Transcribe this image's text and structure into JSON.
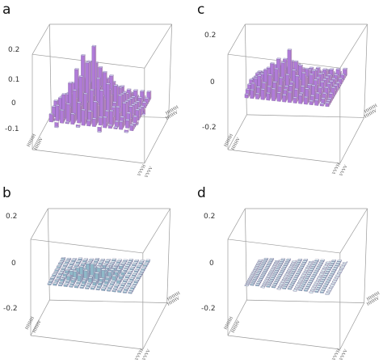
{
  "panels": [
    {
      "letter": "a",
      "z_ticks": [
        "0.2",
        "0.1",
        "0",
        "-0.1"
      ],
      "left_axis_ticks": [
        "HHHH",
        "HHHV"
      ],
      "right_axis_ticks": [
        "HHHV",
        "HHHH"
      ],
      "bottom_axis_ticks": [
        "VVVH",
        "VVVV"
      ]
    },
    {
      "letter": "c",
      "z_ticks": [
        "0.2",
        "0",
        "-0.2"
      ],
      "left_axis_ticks": [
        "HHHH",
        "HHHV"
      ],
      "right_axis_ticks": [
        "HHHV",
        "HHHH"
      ],
      "bottom_axis_ticks": [
        "VVVH",
        "VVVV"
      ]
    },
    {
      "letter": "b",
      "z_ticks": [
        "0.2",
        "0",
        "-0.2"
      ],
      "left_axis_ticks": [
        "HHHH",
        "HHHV"
      ],
      "right_axis_ticks": [
        "HHHV",
        "HHHH"
      ],
      "bottom_axis_ticks": [
        "VVVH",
        "VVVV"
      ]
    },
    {
      "letter": "d",
      "z_ticks": [
        "0.2",
        "0",
        "-0.2"
      ],
      "left_axis_ticks": [
        "HHHH",
        "HHHV"
      ],
      "right_axis_ticks": [
        "HHHV",
        "HHHH"
      ],
      "bottom_axis_ticks": [
        "VVVH",
        "VVVV"
      ]
    }
  ],
  "colors": {
    "bar_top": "#cfc6f2",
    "bar_left": "#b07bd8",
    "bar_right": "#e1a7d6",
    "flat_top": "#dff3f5",
    "flat_left": "#8fb9c8",
    "flat_right": "#b5d6e0",
    "box_edge": "#9a9a9a"
  },
  "chart_data": [
    {
      "type": "3d-bar",
      "panel": "a",
      "grid": [
        16,
        16
      ],
      "zlim": [
        -0.1,
        0.28
      ],
      "values": [
        [
          0.03,
          -0.02,
          0.05,
          0.0,
          0.04,
          -0.01,
          0.06,
          0.02,
          0.03,
          -0.02,
          0.04,
          0.01,
          0.0,
          0.03,
          -0.01,
          0.02
        ],
        [
          0.02,
          0.06,
          0.01,
          0.07,
          0.03,
          0.08,
          0.02,
          0.05,
          0.09,
          0.03,
          0.01,
          0.06,
          0.02,
          0.04,
          0.03,
          0.0
        ],
        [
          -0.01,
          0.04,
          0.1,
          0.05,
          0.12,
          0.06,
          0.11,
          0.04,
          0.08,
          0.13,
          0.05,
          0.03,
          0.07,
          0.02,
          0.05,
          0.01
        ],
        [
          0.04,
          0.02,
          0.06,
          0.14,
          0.08,
          0.17,
          0.07,
          0.12,
          0.06,
          0.1,
          0.15,
          0.06,
          0.04,
          0.08,
          0.02,
          0.03
        ],
        [
          0.01,
          0.07,
          0.03,
          0.09,
          0.19,
          0.1,
          0.22,
          0.09,
          0.16,
          0.08,
          0.12,
          0.07,
          0.1,
          0.03,
          0.06,
          -0.01
        ],
        [
          0.05,
          0.02,
          0.08,
          0.06,
          0.11,
          0.24,
          0.13,
          0.28,
          0.12,
          0.18,
          0.09,
          0.13,
          0.05,
          0.07,
          0.02,
          0.04
        ],
        [
          0.02,
          0.06,
          0.04,
          0.12,
          0.08,
          0.14,
          0.21,
          0.11,
          0.19,
          0.1,
          0.16,
          0.06,
          0.09,
          0.03,
          0.05,
          0.01
        ],
        [
          -0.02,
          0.03,
          0.07,
          0.05,
          0.13,
          0.09,
          0.12,
          0.2,
          0.1,
          0.14,
          0.08,
          0.11,
          0.04,
          0.06,
          0.02,
          0.03
        ],
        [
          0.03,
          0.01,
          0.05,
          0.09,
          0.06,
          0.11,
          0.08,
          0.1,
          0.15,
          0.07,
          0.12,
          0.05,
          0.08,
          0.02,
          0.04,
          0.0
        ],
        [
          0.01,
          0.04,
          0.02,
          0.06,
          0.1,
          0.05,
          0.09,
          0.07,
          0.08,
          0.11,
          0.06,
          0.09,
          0.03,
          0.05,
          0.01,
          0.02
        ],
        [
          0.02,
          -0.01,
          0.05,
          0.03,
          0.07,
          0.04,
          0.06,
          0.08,
          0.05,
          0.07,
          0.09,
          0.04,
          0.06,
          0.02,
          0.03,
          -0.02
        ],
        [
          0.0,
          0.03,
          0.01,
          0.05,
          0.02,
          0.06,
          0.03,
          0.05,
          0.07,
          0.04,
          0.06,
          0.08,
          0.03,
          0.04,
          0.01,
          0.02
        ],
        [
          0.02,
          0.0,
          0.04,
          -0.02,
          0.05,
          0.01,
          0.04,
          0.02,
          0.05,
          0.03,
          0.04,
          0.05,
          0.06,
          0.02,
          0.03,
          0.0
        ],
        [
          -0.01,
          0.02,
          0.0,
          0.03,
          -0.01,
          0.04,
          0.01,
          0.03,
          0.0,
          0.04,
          0.02,
          0.03,
          0.04,
          0.05,
          0.01,
          0.02
        ],
        [
          0.01,
          -0.02,
          0.02,
          0.0,
          0.03,
          -0.01,
          0.02,
          0.01,
          0.03,
          -0.02,
          0.02,
          0.01,
          0.03,
          0.02,
          0.04,
          0.0
        ],
        [
          0.0,
          0.01,
          -0.01,
          0.02,
          0.0,
          0.01,
          -0.02,
          0.02,
          0.01,
          0.0,
          0.01,
          -0.01,
          0.02,
          0.0,
          0.01,
          0.03
        ]
      ]
    },
    {
      "type": "3d-bar",
      "panel": "c",
      "grid": [
        16,
        16
      ],
      "zlim": [
        -0.3,
        0.28
      ],
      "values": [
        [
          0.02,
          0.05,
          0.03,
          0.06,
          0.04,
          0.07,
          0.05,
          0.04,
          0.06,
          0.03,
          0.05,
          0.04,
          0.02,
          0.03,
          0.01,
          0.02
        ],
        [
          0.04,
          0.08,
          0.06,
          0.09,
          0.07,
          0.1,
          0.08,
          0.06,
          0.09,
          0.07,
          0.05,
          0.08,
          0.04,
          0.06,
          0.03,
          0.02
        ],
        [
          0.03,
          0.06,
          0.12,
          0.08,
          0.13,
          0.09,
          0.12,
          0.07,
          0.1,
          0.14,
          0.08,
          0.06,
          0.09,
          0.04,
          0.05,
          0.02
        ],
        [
          0.05,
          0.04,
          0.09,
          0.15,
          0.1,
          0.16,
          0.09,
          0.13,
          0.08,
          0.11,
          0.15,
          0.08,
          0.05,
          0.07,
          0.03,
          0.04
        ],
        [
          0.02,
          0.08,
          0.05,
          0.11,
          0.18,
          0.12,
          0.19,
          0.1,
          0.15,
          0.09,
          0.12,
          0.07,
          0.1,
          0.04,
          0.06,
          0.01
        ],
        [
          0.06,
          0.03,
          0.1,
          0.07,
          0.12,
          0.2,
          0.14,
          0.26,
          0.13,
          0.17,
          0.1,
          0.12,
          0.06,
          0.08,
          0.03,
          0.05
        ],
        [
          0.03,
          0.07,
          0.05,
          0.13,
          0.09,
          0.15,
          0.19,
          0.12,
          0.18,
          0.11,
          0.14,
          0.07,
          0.09,
          0.04,
          0.06,
          0.02
        ],
        [
          0.01,
          0.04,
          0.08,
          0.06,
          0.14,
          0.1,
          0.13,
          0.17,
          0.11,
          0.13,
          0.09,
          0.12,
          0.05,
          0.07,
          0.03,
          0.04
        ],
        [
          0.04,
          0.02,
          0.06,
          0.1,
          0.07,
          0.12,
          0.09,
          0.11,
          0.14,
          0.08,
          0.11,
          0.06,
          0.09,
          0.03,
          0.05,
          0.01
        ],
        [
          0.02,
          0.05,
          0.03,
          0.07,
          0.11,
          0.06,
          0.1,
          0.08,
          0.09,
          0.1,
          0.07,
          0.1,
          0.04,
          0.06,
          0.02,
          0.03
        ],
        [
          0.03,
          0.01,
          0.06,
          0.04,
          0.08,
          0.05,
          0.07,
          0.09,
          0.06,
          0.08,
          0.1,
          0.05,
          0.07,
          0.03,
          0.04,
          0.0
        ],
        [
          0.01,
          0.04,
          0.02,
          0.06,
          0.03,
          0.07,
          0.04,
          0.06,
          0.08,
          0.05,
          0.07,
          0.09,
          0.04,
          0.05,
          0.02,
          0.03
        ],
        [
          0.03,
          0.01,
          0.05,
          0.02,
          0.06,
          0.02,
          0.05,
          0.03,
          0.06,
          0.04,
          0.05,
          0.06,
          0.07,
          0.03,
          0.04,
          0.01
        ],
        [
          0.0,
          0.03,
          0.01,
          0.04,
          0.01,
          0.05,
          0.02,
          0.04,
          0.01,
          0.05,
          0.03,
          0.04,
          0.05,
          0.06,
          0.02,
          0.03
        ],
        [
          0.02,
          0.0,
          0.03,
          0.01,
          0.04,
          0.0,
          0.03,
          0.02,
          0.04,
          0.01,
          0.03,
          0.02,
          0.04,
          0.03,
          0.05,
          0.01
        ],
        [
          0.01,
          0.02,
          0.0,
          0.03,
          0.01,
          0.02,
          0.01,
          0.03,
          0.02,
          0.01,
          0.02,
          0.0,
          0.03,
          0.01,
          0.02,
          0.04
        ]
      ]
    },
    {
      "type": "3d-bar",
      "panel": "b",
      "grid": [
        16,
        16
      ],
      "zlim": [
        -0.28,
        0.28
      ],
      "values": [
        [
          0.0,
          0.01,
          0.0,
          0.01,
          0.0,
          0.01,
          0.0,
          0.0,
          0.01,
          0.0,
          0.01,
          0.0,
          0.0,
          0.01,
          0.0,
          0.0
        ],
        [
          0.01,
          0.0,
          0.01,
          0.0,
          0.01,
          0.0,
          0.01,
          0.01,
          0.0,
          0.01,
          0.0,
          0.01,
          0.0,
          0.0,
          0.01,
          0.0
        ],
        [
          0.0,
          0.01,
          0.02,
          0.01,
          0.02,
          0.01,
          0.02,
          0.01,
          0.02,
          0.02,
          0.01,
          0.0,
          0.01,
          0.0,
          0.0,
          0.01
        ],
        [
          0.01,
          0.0,
          0.01,
          0.03,
          0.02,
          0.04,
          0.02,
          0.03,
          0.02,
          0.03,
          0.02,
          0.01,
          0.0,
          0.01,
          0.0,
          0.0
        ],
        [
          0.0,
          0.01,
          0.01,
          0.02,
          0.05,
          0.03,
          0.06,
          0.03,
          0.05,
          0.02,
          0.03,
          0.01,
          0.02,
          0.0,
          0.01,
          0.0
        ],
        [
          0.01,
          0.0,
          0.02,
          0.01,
          0.03,
          0.07,
          0.04,
          0.09,
          0.04,
          0.06,
          0.02,
          0.03,
          0.01,
          0.01,
          0.0,
          0.01
        ],
        [
          0.0,
          0.01,
          0.01,
          0.03,
          0.02,
          0.04,
          0.08,
          0.03,
          0.06,
          0.03,
          0.04,
          0.01,
          0.02,
          0.0,
          0.01,
          0.0
        ],
        [
          0.0,
          0.0,
          0.02,
          0.01,
          0.04,
          0.02,
          0.03,
          0.05,
          0.03,
          0.04,
          0.02,
          0.03,
          0.01,
          0.01,
          0.0,
          0.01
        ],
        [
          0.01,
          0.0,
          0.01,
          0.02,
          0.01,
          0.03,
          0.02,
          0.03,
          0.04,
          0.02,
          0.03,
          0.01,
          0.02,
          0.0,
          0.01,
          0.0
        ],
        [
          0.0,
          0.01,
          0.0,
          0.01,
          0.02,
          0.01,
          0.02,
          0.02,
          0.02,
          0.03,
          0.01,
          0.02,
          0.0,
          0.01,
          0.0,
          0.0
        ],
        [
          0.01,
          0.0,
          0.01,
          0.0,
          0.01,
          0.01,
          0.01,
          0.02,
          0.01,
          0.01,
          0.02,
          0.01,
          0.01,
          0.0,
          0.01,
          0.0
        ],
        [
          0.0,
          0.01,
          0.0,
          0.01,
          0.0,
          0.01,
          0.01,
          0.01,
          0.02,
          0.01,
          0.01,
          0.02,
          0.01,
          0.01,
          0.0,
          0.01
        ],
        [
          0.01,
          0.0,
          0.01,
          0.0,
          0.01,
          0.0,
          0.01,
          0.0,
          0.01,
          0.01,
          0.01,
          0.01,
          0.01,
          0.0,
          0.01,
          0.0
        ],
        [
          0.0,
          0.01,
          0.0,
          0.01,
          0.0,
          0.01,
          0.0,
          0.01,
          0.0,
          0.01,
          0.0,
          0.01,
          0.01,
          0.01,
          0.0,
          0.01
        ],
        [
          0.0,
          0.0,
          0.01,
          0.0,
          0.01,
          0.0,
          0.01,
          0.0,
          0.01,
          0.0,
          0.01,
          0.0,
          0.01,
          0.0,
          0.01,
          0.0
        ],
        [
          0.01,
          0.0,
          0.0,
          0.01,
          0.0,
          0.0,
          0.01,
          0.0,
          0.0,
          0.01,
          0.0,
          0.0,
          0.01,
          0.0,
          0.0,
          0.01
        ]
      ]
    },
    {
      "type": "3d-bar",
      "panel": "d",
      "grid": [
        16,
        16
      ],
      "zlim": [
        -0.28,
        0.28
      ],
      "values": "all cells approximately 0"
    }
  ]
}
